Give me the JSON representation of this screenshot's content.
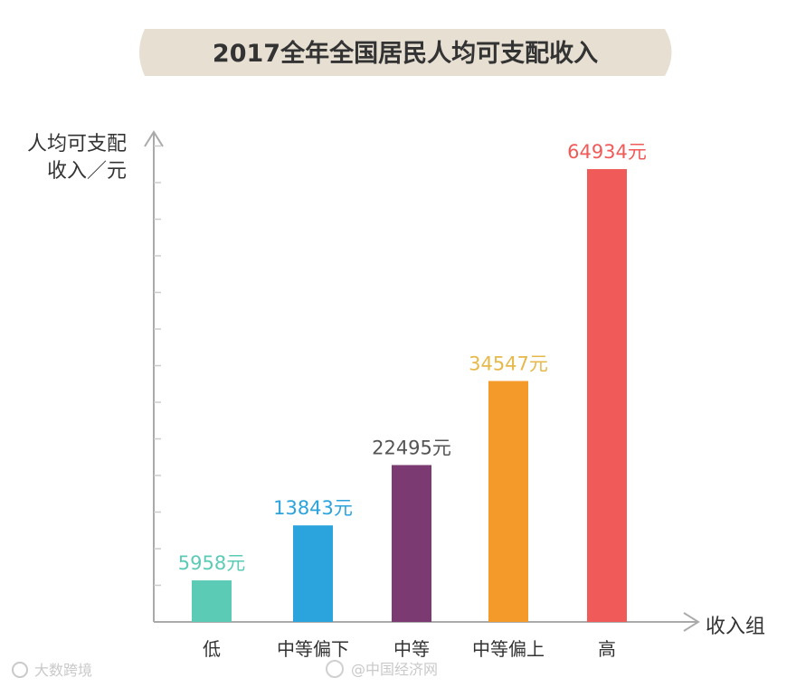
{
  "chart_data": {
    "type": "bar",
    "title": "2017全年全国居民人均可支配收入",
    "ylabel_line1": "人均可支配",
    "ylabel_line2": "收入／元",
    "xlabel": "收入组",
    "categories": [
      "低",
      "中等偏下",
      "中等",
      "中等偏上",
      "高"
    ],
    "values": [
      5958,
      13843,
      22495,
      34547,
      64934
    ],
    "value_labels": [
      "5958元",
      "13843元",
      "22495元",
      "34547元",
      "64934元"
    ],
    "bar_colors": [
      "#5ccbb6",
      "#2ba3dc",
      "#7b3a72",
      "#f39a2a",
      "#f05a58"
    ],
    "label_colors": [
      "#5ccbb6",
      "#2ba3dc",
      "#555555",
      "#e7b84a",
      "#f05a58"
    ],
    "ylim": [
      0,
      70000
    ],
    "grid": false,
    "legend": "none"
  },
  "watermark": {
    "left": "大数跨境",
    "center": "@中国经济网"
  },
  "colors": {
    "title_banner": "#e6dfd2",
    "axis": "#aaaaaa"
  }
}
